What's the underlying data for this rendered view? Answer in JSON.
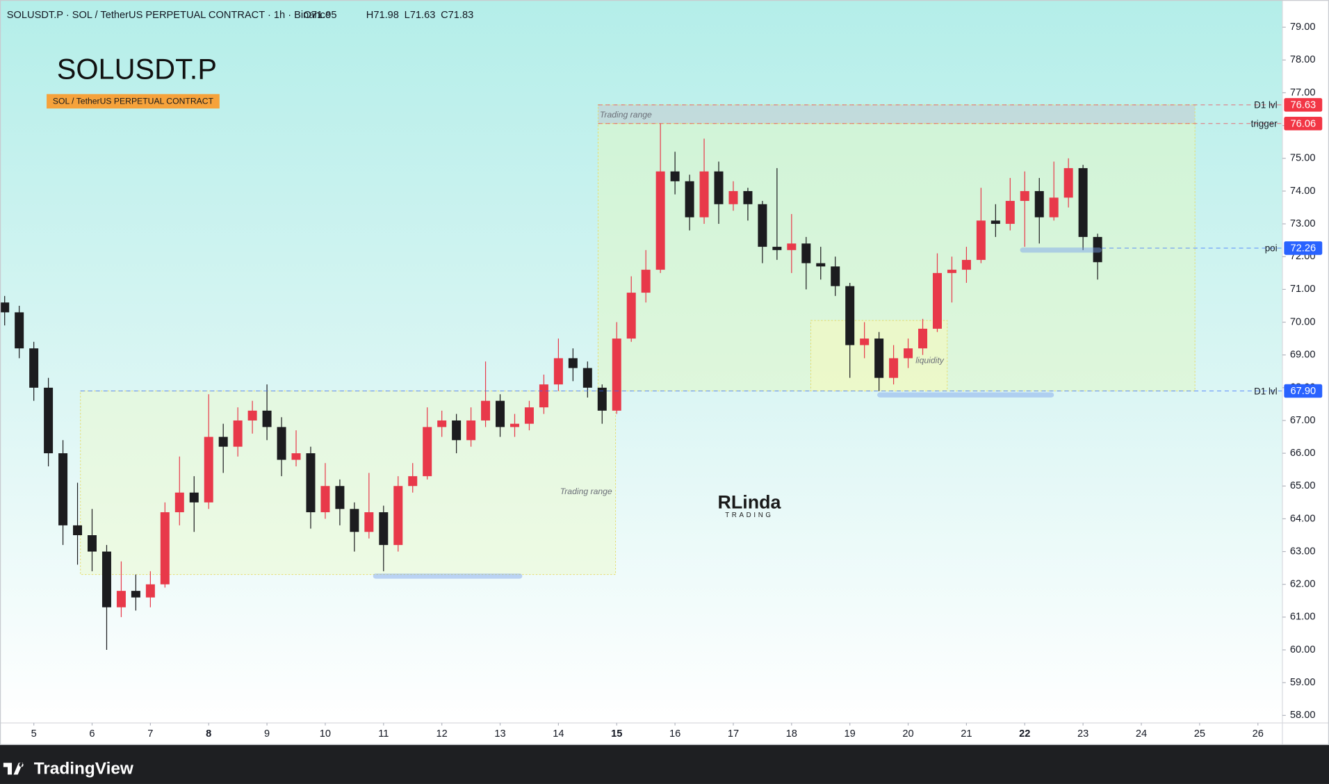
{
  "header": {
    "symbol_line": "SOLUSDT.P · SOL / TetherUS PERPETUAL CONTRACT · 1h · Binance",
    "ohlc": [
      "O71.95",
      "H71.98",
      "L71.63",
      "C71.83"
    ]
  },
  "footer": {
    "brand": "TradingView"
  },
  "chart_data": {
    "type": "candlestick",
    "title": "SOLUSDT.P",
    "subtitle": "SOL / TetherUS PERPETUAL CONTRACT",
    "watermark": {
      "text": "RLinda",
      "subtext": "TRADING"
    },
    "up_color": "#e8394a",
    "down_color": "#1c1c1f",
    "xlim": [
      4.42,
      26.42
    ],
    "xticks": [
      5,
      6,
      7,
      8,
      9,
      10,
      11,
      12,
      13,
      14,
      15,
      16,
      17,
      18,
      19,
      20,
      21,
      22,
      23,
      24,
      25,
      26
    ],
    "major_xticks": [
      8,
      15,
      22
    ],
    "ylim": [
      57.77,
      79.83
    ],
    "yticks": [
      {
        "value": 58,
        "label": "58.00"
      },
      {
        "value": 59,
        "label": "59.00"
      },
      {
        "value": 60,
        "label": "60.00"
      },
      {
        "value": 61,
        "label": "61.00"
      },
      {
        "value": 62,
        "label": "62.00"
      },
      {
        "value": 63,
        "label": "63.00"
      },
      {
        "value": 64,
        "label": "64.00"
      },
      {
        "value": 65,
        "label": "65.00"
      },
      {
        "value": 66,
        "label": "66.00"
      },
      {
        "value": 67,
        "label": "67.00"
      },
      {
        "value": 68,
        "label": "68.00"
      },
      {
        "value": 69,
        "label": "69.00"
      },
      {
        "value": 70,
        "label": "70.00"
      },
      {
        "value": 71,
        "label": "71.00"
      },
      {
        "value": 72,
        "label": "72.00"
      },
      {
        "value": 73,
        "label": "73.00"
      },
      {
        "value": 74,
        "label": "74.00"
      },
      {
        "value": 75,
        "label": "75.00"
      },
      {
        "value": 76,
        "label": "76.00"
      },
      {
        "value": 77,
        "label": "77.00"
      },
      {
        "value": 78,
        "label": "78.00"
      },
      {
        "value": 79,
        "label": "79.00"
      }
    ],
    "x": [
      4.5,
      4.75,
      5,
      5.25,
      5.5,
      5.75,
      6,
      6.25,
      6.5,
      6.75,
      7,
      7.25,
      7.5,
      7.75,
      8,
      8.25,
      8.5,
      8.75,
      9,
      9.25,
      9.5,
      9.75,
      10,
      10.25,
      10.5,
      10.75,
      11,
      11.25,
      11.5,
      11.75,
      12,
      12.25,
      12.5,
      12.75,
      13,
      13.25,
      13.5,
      13.75,
      14,
      14.25,
      14.5,
      14.75,
      15,
      15.25,
      15.5,
      15.75,
      16,
      16.25,
      16.5,
      16.75,
      17,
      17.25,
      17.5,
      17.75,
      18,
      18.25,
      18.5,
      18.75,
      19,
      19.25,
      19.5,
      19.75,
      20,
      20.25,
      20.5,
      20.75,
      21,
      21.25,
      21.5,
      21.75,
      22,
      22.25,
      22.5,
      22.75,
      23,
      23.25
    ],
    "open": [
      70.6,
      70.3,
      69.2,
      68.0,
      66.0,
      63.8,
      63.5,
      63.0,
      61.3,
      61.8,
      61.6,
      62.0,
      64.2,
      64.8,
      64.5,
      66.5,
      66.2,
      67.0,
      67.3,
      66.8,
      65.8,
      66.0,
      64.2,
      65.0,
      64.3,
      63.6,
      64.2,
      63.2,
      65.0,
      65.3,
      66.8,
      67.0,
      66.4,
      67.0,
      67.6,
      66.8,
      66.9,
      67.4,
      68.1,
      68.9,
      68.6,
      68.0,
      67.3,
      69.5,
      70.9,
      71.6,
      74.6,
      74.3,
      73.2,
      74.6,
      73.6,
      74.0,
      73.6,
      72.3,
      72.2,
      72.4,
      71.8,
      71.7,
      71.1,
      69.3,
      69.5,
      68.3,
      68.9,
      69.2,
      69.8,
      71.5,
      71.6,
      71.9,
      73.1,
      73.0,
      73.7,
      74.0,
      73.2,
      73.8,
      74.7,
      72.6
    ],
    "high": [
      70.8,
      70.5,
      69.4,
      68.3,
      66.4,
      65.1,
      64.3,
      63.2,
      62.7,
      62.3,
      62.4,
      64.5,
      65.9,
      65.3,
      67.8,
      66.9,
      67.4,
      67.6,
      68.1,
      67.1,
      66.7,
      66.2,
      65.7,
      65.2,
      64.5,
      65.4,
      64.4,
      65.3,
      65.7,
      67.4,
      67.3,
      67.2,
      67.4,
      68.8,
      67.8,
      67.2,
      67.6,
      68.4,
      69.5,
      69.2,
      68.8,
      68.1,
      70.0,
      71.4,
      72.2,
      76.06,
      75.2,
      74.5,
      75.6,
      74.9,
      74.3,
      74.1,
      73.7,
      74.7,
      73.3,
      72.6,
      72.3,
      72.0,
      71.2,
      70.0,
      69.7,
      69.3,
      69.5,
      70.1,
      72.1,
      72.0,
      72.3,
      74.1,
      73.6,
      74.4,
      74.6,
      74.4,
      74.9,
      75.0,
      74.8,
      72.7
    ],
    "low": [
      69.9,
      68.9,
      67.6,
      65.6,
      63.2,
      62.6,
      62.4,
      60.0,
      61.0,
      61.2,
      61.3,
      61.9,
      63.8,
      63.6,
      64.3,
      65.4,
      65.9,
      66.6,
      66.4,
      65.3,
      65.6,
      63.7,
      64.0,
      63.8,
      63.0,
      63.4,
      62.4,
      63.0,
      64.8,
      65.2,
      66.5,
      66.0,
      66.2,
      66.8,
      66.5,
      66.5,
      66.7,
      67.2,
      67.9,
      68.2,
      67.7,
      66.9,
      67.2,
      69.4,
      70.6,
      71.5,
      73.9,
      72.8,
      73.0,
      73.0,
      73.4,
      73.1,
      71.8,
      71.9,
      71.5,
      71.0,
      71.3,
      70.8,
      68.3,
      68.9,
      67.9,
      68.1,
      68.6,
      69.0,
      69.7,
      70.6,
      71.2,
      71.8,
      72.6,
      72.8,
      72.3,
      72.4,
      73.1,
      73.5,
      72.2,
      71.3
    ],
    "close": [
      70.3,
      69.2,
      68.0,
      66.0,
      63.8,
      63.5,
      63.0,
      61.3,
      61.8,
      61.6,
      62.0,
      64.2,
      64.8,
      64.5,
      66.5,
      66.2,
      67.0,
      67.3,
      66.8,
      65.8,
      66.0,
      64.2,
      65.0,
      64.3,
      63.6,
      64.2,
      63.2,
      65.0,
      65.3,
      66.8,
      67.0,
      66.4,
      67.0,
      67.6,
      66.8,
      66.9,
      67.4,
      68.1,
      68.9,
      68.6,
      68.0,
      67.3,
      69.5,
      70.9,
      71.6,
      74.6,
      74.3,
      73.2,
      74.6,
      73.6,
      74.0,
      73.6,
      72.3,
      72.2,
      72.4,
      71.8,
      71.7,
      71.1,
      69.3,
      69.5,
      68.3,
      68.9,
      69.2,
      69.8,
      71.5,
      71.6,
      71.9,
      73.1,
      73.0,
      73.7,
      74.0,
      73.2,
      73.8,
      74.7,
      72.6,
      71.83
    ],
    "zones": [
      {
        "x": [
          14.68,
          24.92
        ],
        "y": [
          67.9,
          76.06
        ],
        "color": "rgba(225,248,195,0.5)"
      },
      {
        "x": [
          14.68,
          24.92
        ],
        "y": [
          76.06,
          76.63
        ],
        "color": "rgba(195,205,210,0.6)",
        "label": "Trading range",
        "label_anchor": "top-left"
      },
      {
        "x": [
          5.8,
          14.98
        ],
        "y": [
          62.3,
          67.9
        ],
        "color": "rgba(235,250,205,0.5)",
        "label": "Trading range",
        "label_anchor": "right"
      },
      {
        "x": [
          18.33,
          20.67
        ],
        "y": [
          67.9,
          70.05
        ],
        "color": "rgba(245,250,190,0.6)",
        "label": "liquidity",
        "label_anchor": "right"
      }
    ],
    "highlights": [
      {
        "x": [
          10.82,
          13.38
        ],
        "y": 62.25
      },
      {
        "x": [
          19.47,
          22.5
        ],
        "y": 67.78
      },
      {
        "x": [
          21.92,
          23.32
        ],
        "y": 72.2
      }
    ],
    "levels": [
      {
        "name": "D1 lvl",
        "value": 76.63,
        "value_label": "76.63",
        "color": "#f23645",
        "x0": 14.68
      },
      {
        "name": "trigger",
        "value": 76.06,
        "value_label": "76.06",
        "color": "#f23645",
        "x0": 14.68
      },
      {
        "name": "poi",
        "value": 72.26,
        "value_label": "72.26",
        "color": "#2962ff",
        "x0": 23.32
      },
      {
        "name": "D1 lvl",
        "value": 67.9,
        "value_label": "67.90",
        "color": "#2962ff",
        "x0": 5.8
      }
    ]
  }
}
